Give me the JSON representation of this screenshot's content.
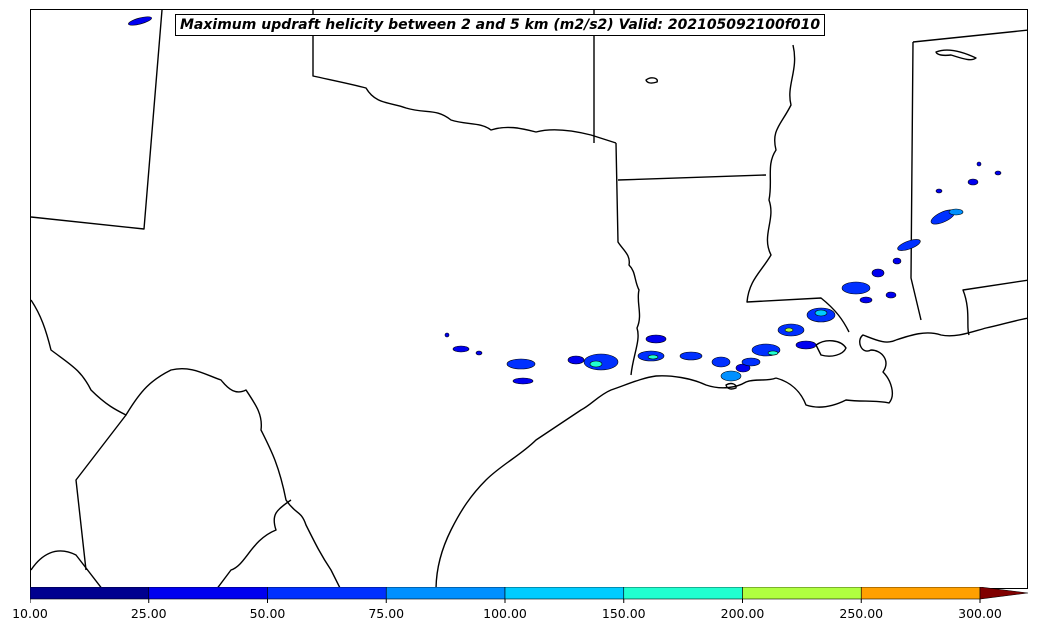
{
  "map": {
    "title": "Maximum updraft helicity between 2 and 5 km (m2/s2) Valid: 202105092100f010",
    "line_color": "#000000",
    "background": "#ffffff"
  },
  "colorbar": {
    "extend": "max",
    "levels": [
      "10.00",
      "25.00",
      "50.00",
      "75.00",
      "100.00",
      "150.00",
      "200.00",
      "250.00",
      "300.00"
    ],
    "colors": [
      "#00008f",
      "#0000f0",
      "#0030ff",
      "#0090ff",
      "#00ccff",
      "#20ffd0",
      "#b0ff40",
      "#ffa000",
      "#e80000"
    ],
    "extend_color": "#800000"
  }
}
